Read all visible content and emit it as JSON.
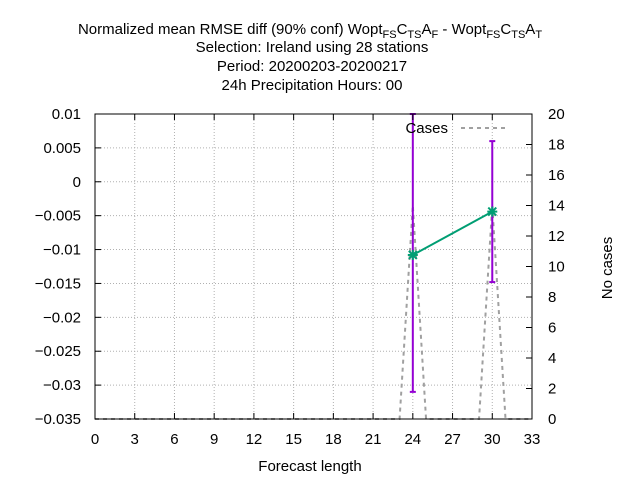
{
  "chart_data": {
    "type": "line",
    "title_lines": [
      "Normalized mean RMSE diff (90% conf) Wopt_{FS}C_{TS}A_{F} - Wopt_{FS}C_{TS}A_{T}",
      "Selection: Ireland using    28 stations",
      "Period: 20200203-20200217",
      "24h Precipitation    Hours:  00"
    ],
    "title": {
      "prefix": "Normalized mean RMSE diff (90% conf) ",
      "m1": "Wopt",
      "m1_s1": "FS",
      "m1_c": "C",
      "m1_s2": "TS",
      "m1_a": "A",
      "m1_s3": "F",
      "sep": " - ",
      "m2": "Wopt",
      "m2_s1": "FS",
      "m2_c": "C",
      "m2_s2": "TS",
      "m2_a": "A",
      "m2_s3": "T"
    },
    "subtitle_lines": [
      "Selection: Ireland using    28 stations",
      "Period: 20200203-20200217",
      "24h Precipitation    Hours:  00"
    ],
    "xlabel": "Forecast length",
    "ylabel": "",
    "y2label": "No cases",
    "xlim": [
      0,
      33
    ],
    "ylim": [
      -0.035,
      0.01
    ],
    "y2lim": [
      0,
      20
    ],
    "x_ticks": [
      0,
      3,
      6,
      9,
      12,
      15,
      18,
      21,
      24,
      27,
      30,
      33
    ],
    "y_ticks": [
      0.01,
      0.005,
      0,
      -0.005,
      -0.01,
      -0.015,
      -0.02,
      -0.025,
      -0.03,
      -0.035
    ],
    "y_tick_labels": [
      "0.01",
      "0.005",
      "0",
      "−0.005",
      "−0.01",
      "−0.015",
      "−0.02",
      "−0.025",
      "−0.03",
      "−0.035"
    ],
    "y2_ticks": [
      0,
      2,
      4,
      6,
      8,
      10,
      12,
      14,
      16,
      18,
      20
    ],
    "grid": true,
    "legend": {
      "position": "top-right",
      "entries": [
        "Cases"
      ]
    },
    "series": [
      {
        "kind": "diff-line",
        "color": "#009e73",
        "x": [
          24,
          30
        ],
        "y": [
          -0.0108,
          -0.0044
        ],
        "err_low": [
          -0.031,
          -0.0148
        ],
        "err_high": [
          0.01,
          0.006
        ],
        "err_color": "#9400d3"
      },
      {
        "name": "Cases",
        "kind": "cases",
        "axis": "y2",
        "color": "#a0a0a0",
        "x": [
          0,
          23,
          24,
          25,
          29,
          30,
          31,
          33
        ],
        "y": [
          0,
          0,
          14,
          0,
          0,
          14,
          0,
          0
        ]
      }
    ]
  }
}
